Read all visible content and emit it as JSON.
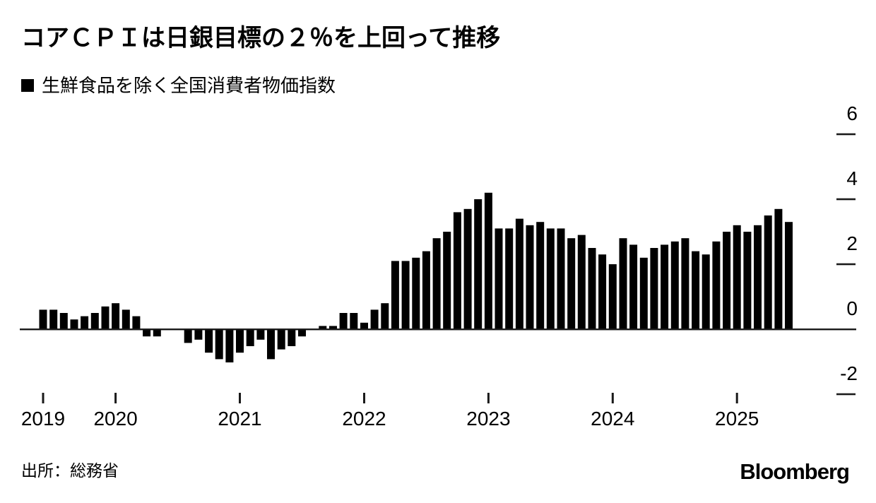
{
  "page": {
    "title": "コアＣＰＩは日銀目標の２％を上回って推移",
    "source": "出所：総務省",
    "brand": "Bloomberg"
  },
  "legend": {
    "marker": "black-square",
    "label": "生鮮食品を除く全国消費者物価指数"
  },
  "colors": {
    "bar": "#000000",
    "axis": "#1a1a1a",
    "text": "#000000",
    "background": "#ffffff"
  },
  "chart_data": {
    "type": "bar",
    "title": "コアＣＰＩは日銀目標の２％を上回って推移",
    "series_name": "生鮮食品を除く全国消費者物価指数",
    "unit": "% YoY",
    "frequency": "monthly",
    "grid": "off",
    "legend_position": "top-left",
    "y_axis_side": "right",
    "ylim": [
      -2.9,
      6.9
    ],
    "y_ticks": [
      6,
      4,
      2,
      0,
      -2
    ],
    "y_tick_labels": [
      "6",
      "4",
      "2",
      "0",
      "-2"
    ],
    "x_tick_labels": [
      "2019",
      "2020",
      "2021",
      "2022",
      "2023",
      "2024",
      "2025"
    ],
    "x": [
      "2019-06",
      "2019-07",
      "2019-08",
      "2019-09",
      "2019-10",
      "2019-11",
      "2019-12",
      "2020-01",
      "2020-02",
      "2020-03",
      "2020-04",
      "2020-05",
      "2020-06",
      "2020-07",
      "2020-08",
      "2020-09",
      "2020-10",
      "2020-11",
      "2020-12",
      "2021-01",
      "2021-02",
      "2021-03",
      "2021-04",
      "2021-05",
      "2021-06",
      "2021-07",
      "2021-08",
      "2021-09",
      "2021-10",
      "2021-11",
      "2021-12",
      "2022-01",
      "2022-02",
      "2022-03",
      "2022-04",
      "2022-05",
      "2022-06",
      "2022-07",
      "2022-08",
      "2022-09",
      "2022-10",
      "2022-11",
      "2022-12",
      "2023-01",
      "2023-02",
      "2023-03",
      "2023-04",
      "2023-05",
      "2023-06",
      "2023-07",
      "2023-08",
      "2023-09",
      "2023-10",
      "2023-11",
      "2023-12",
      "2024-01",
      "2024-02",
      "2024-03",
      "2024-04",
      "2024-05",
      "2024-06",
      "2024-07",
      "2024-08",
      "2024-09",
      "2024-10",
      "2024-11",
      "2024-12",
      "2025-01",
      "2025-02",
      "2025-03",
      "2025-04",
      "2025-05",
      "2025-06"
    ],
    "values": [
      0.6,
      0.6,
      0.5,
      0.3,
      0.4,
      0.5,
      0.7,
      0.8,
      0.6,
      0.4,
      -0.2,
      -0.2,
      0.0,
      0.0,
      -0.4,
      -0.3,
      -0.7,
      -0.9,
      -1.0,
      -0.7,
      -0.5,
      -0.3,
      -0.9,
      -0.6,
      -0.5,
      -0.2,
      0.0,
      0.1,
      0.1,
      0.5,
      0.5,
      0.2,
      0.6,
      0.8,
      2.1,
      2.1,
      2.2,
      2.4,
      2.8,
      3.0,
      3.6,
      3.7,
      4.0,
      4.2,
      3.1,
      3.1,
      3.4,
      3.2,
      3.3,
      3.1,
      3.1,
      2.8,
      2.9,
      2.5,
      2.3,
      2.0,
      2.8,
      2.6,
      2.2,
      2.5,
      2.6,
      2.7,
      2.8,
      2.4,
      2.3,
      2.7,
      3.0,
      3.2,
      3.0,
      3.2,
      3.5,
      3.7,
      3.3
    ],
    "source": "出所：総務省"
  }
}
